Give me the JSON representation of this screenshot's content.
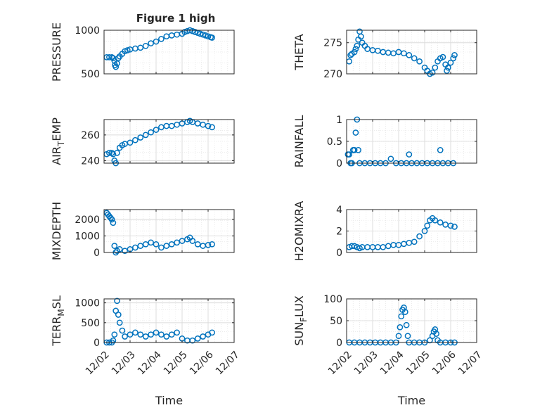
{
  "figure": {
    "title": "Figure 1 high"
  },
  "colors": {
    "marker": "#0072BD",
    "axis": "#262626",
    "grid": "#dcdcdc",
    "background": "#ffffff"
  },
  "x_axis": {
    "label": "Time",
    "ticks": [
      "12/02",
      "12/03",
      "12/04",
      "12/05",
      "12/06",
      "12/07"
    ],
    "tick_values": [
      0,
      1,
      2,
      3,
      4,
      5
    ],
    "range": [
      0,
      5
    ]
  },
  "chart_data": [
    {
      "id": "pressure",
      "type": "scatter",
      "title": "Figure 1 high",
      "ylabel": "PRESSURE",
      "ylabel_sub": null,
      "ylim": [
        500,
        1000
      ],
      "yticks": [
        500,
        1000
      ],
      "grid": true,
      "points": [
        [
          0.1,
          690
        ],
        [
          0.2,
          690
        ],
        [
          0.3,
          690
        ],
        [
          0.35,
          680
        ],
        [
          0.4,
          650
        ],
        [
          0.42,
          600
        ],
        [
          0.45,
          580
        ],
        [
          0.5,
          620
        ],
        [
          0.55,
          680
        ],
        [
          0.6,
          700
        ],
        [
          0.7,
          730
        ],
        [
          0.8,
          760
        ],
        [
          0.9,
          770
        ],
        [
          1.0,
          780
        ],
        [
          1.2,
          790
        ],
        [
          1.4,
          800
        ],
        [
          1.6,
          820
        ],
        [
          1.8,
          850
        ],
        [
          2.0,
          870
        ],
        [
          2.2,
          900
        ],
        [
          2.4,
          930
        ],
        [
          2.6,
          940
        ],
        [
          2.8,
          950
        ],
        [
          3.0,
          960
        ],
        [
          3.1,
          980
        ],
        [
          3.2,
          990
        ],
        [
          3.3,
          1000
        ],
        [
          3.4,
          990
        ],
        [
          3.5,
          980
        ],
        [
          3.6,
          970
        ],
        [
          3.7,
          960
        ],
        [
          3.8,
          950
        ],
        [
          3.9,
          940
        ],
        [
          4.0,
          930
        ],
        [
          4.1,
          920
        ],
        [
          4.15,
          915
        ]
      ]
    },
    {
      "id": "theta",
      "type": "scatter",
      "title": "",
      "ylabel": "THETA",
      "ylabel_sub": null,
      "ylim": [
        270,
        277
      ],
      "yticks": [
        270,
        275
      ],
      "grid": true,
      "points": [
        [
          0.1,
          272.0
        ],
        [
          0.15,
          273.0
        ],
        [
          0.2,
          273.2
        ],
        [
          0.3,
          273.5
        ],
        [
          0.35,
          274.0
        ],
        [
          0.4,
          274.5
        ],
        [
          0.45,
          275.5
        ],
        [
          0.5,
          276.8
        ],
        [
          0.55,
          276.0
        ],
        [
          0.6,
          275.0
        ],
        [
          0.7,
          274.5
        ],
        [
          0.8,
          274.0
        ],
        [
          1.0,
          273.8
        ],
        [
          1.2,
          273.7
        ],
        [
          1.4,
          273.5
        ],
        [
          1.6,
          273.4
        ],
        [
          1.8,
          273.3
        ],
        [
          2.0,
          273.5
        ],
        [
          2.2,
          273.3
        ],
        [
          2.4,
          273.0
        ],
        [
          2.6,
          272.5
        ],
        [
          2.8,
          272.0
        ],
        [
          3.0,
          271.0
        ],
        [
          3.1,
          270.5
        ],
        [
          3.2,
          270.0
        ],
        [
          3.3,
          270.2
        ],
        [
          3.4,
          271.0
        ],
        [
          3.5,
          272.0
        ],
        [
          3.6,
          272.5
        ],
        [
          3.7,
          272.7
        ],
        [
          3.8,
          271.5
        ],
        [
          3.85,
          270.5
        ],
        [
          3.9,
          271.0
        ],
        [
          4.0,
          271.8
        ],
        [
          4.1,
          272.5
        ],
        [
          4.15,
          273.0
        ]
      ]
    },
    {
      "id": "air_temp",
      "type": "scatter",
      "title": "",
      "ylabel": "AIR",
      "ylabel_sub": "T",
      "ylabel_tail": "EMP",
      "ylim": [
        238,
        272
      ],
      "yticks": [
        240,
        260
      ],
      "grid": true,
      "points": [
        [
          0.1,
          245
        ],
        [
          0.2,
          246
        ],
        [
          0.3,
          246
        ],
        [
          0.35,
          245
        ],
        [
          0.4,
          240
        ],
        [
          0.45,
          238
        ],
        [
          0.5,
          246
        ],
        [
          0.6,
          250
        ],
        [
          0.7,
          252
        ],
        [
          0.8,
          253
        ],
        [
          1.0,
          254
        ],
        [
          1.2,
          256
        ],
        [
          1.4,
          258
        ],
        [
          1.6,
          260
        ],
        [
          1.8,
          262
        ],
        [
          2.0,
          264
        ],
        [
          2.2,
          266
        ],
        [
          2.4,
          267
        ],
        [
          2.6,
          267
        ],
        [
          2.8,
          268
        ],
        [
          3.0,
          269
        ],
        [
          3.2,
          270
        ],
        [
          3.3,
          271
        ],
        [
          3.4,
          270
        ],
        [
          3.6,
          269
        ],
        [
          3.8,
          268
        ],
        [
          4.0,
          267
        ],
        [
          4.15,
          266
        ]
      ]
    },
    {
      "id": "rainfall",
      "type": "scatter",
      "title": "",
      "ylabel": "RAINFALL",
      "ylabel_sub": null,
      "ylim": [
        0,
        1
      ],
      "yticks": [
        0,
        0.5,
        1
      ],
      "grid": true,
      "points": [
        [
          0.05,
          0.2
        ],
        [
          0.1,
          0.2
        ],
        [
          0.15,
          0.0
        ],
        [
          0.2,
          0.0
        ],
        [
          0.25,
          0.3
        ],
        [
          0.3,
          0.3
        ],
        [
          0.35,
          0.7
        ],
        [
          0.4,
          1.0
        ],
        [
          0.45,
          0.3
        ],
        [
          0.5,
          0.0
        ],
        [
          0.7,
          0.0
        ],
        [
          0.9,
          0.0
        ],
        [
          1.1,
          0.0
        ],
        [
          1.3,
          0.0
        ],
        [
          1.5,
          0.0
        ],
        [
          1.7,
          0.1
        ],
        [
          1.9,
          0.0
        ],
        [
          2.1,
          0.0
        ],
        [
          2.3,
          0.0
        ],
        [
          2.4,
          0.2
        ],
        [
          2.5,
          0.0
        ],
        [
          2.7,
          0.0
        ],
        [
          2.9,
          0.0
        ],
        [
          3.1,
          0.0
        ],
        [
          3.3,
          0.0
        ],
        [
          3.5,
          0.0
        ],
        [
          3.6,
          0.3
        ],
        [
          3.7,
          0.0
        ],
        [
          3.9,
          0.0
        ],
        [
          4.1,
          0.0
        ]
      ]
    },
    {
      "id": "mixdepth",
      "type": "scatter",
      "title": "",
      "ylabel": "MIXDEPTH",
      "ylabel_sub": null,
      "ylim": [
        0,
        2600
      ],
      "yticks": [
        0,
        1000,
        2000
      ],
      "grid": true,
      "points": [
        [
          0.1,
          2400
        ],
        [
          0.15,
          2300
        ],
        [
          0.2,
          2200
        ],
        [
          0.25,
          2100
        ],
        [
          0.3,
          2000
        ],
        [
          0.35,
          1800
        ],
        [
          0.4,
          400
        ],
        [
          0.45,
          0
        ],
        [
          0.5,
          100
        ],
        [
          0.6,
          200
        ],
        [
          0.8,
          100
        ],
        [
          1.0,
          200
        ],
        [
          1.2,
          300
        ],
        [
          1.4,
          400
        ],
        [
          1.6,
          500
        ],
        [
          1.8,
          600
        ],
        [
          2.0,
          500
        ],
        [
          2.2,
          300
        ],
        [
          2.4,
          400
        ],
        [
          2.6,
          500
        ],
        [
          2.8,
          600
        ],
        [
          3.0,
          700
        ],
        [
          3.2,
          800
        ],
        [
          3.3,
          900
        ],
        [
          3.4,
          700
        ],
        [
          3.6,
          500
        ],
        [
          3.8,
          400
        ],
        [
          4.0,
          450
        ],
        [
          4.15,
          500
        ]
      ]
    },
    {
      "id": "h2omixra",
      "type": "scatter",
      "title": "",
      "ylabel": "H2OMIXRA",
      "ylabel_sub": null,
      "ylim": [
        0,
        4
      ],
      "yticks": [
        0,
        2,
        4
      ],
      "grid": true,
      "points": [
        [
          0.1,
          0.5
        ],
        [
          0.2,
          0.6
        ],
        [
          0.3,
          0.6
        ],
        [
          0.4,
          0.5
        ],
        [
          0.5,
          0.4
        ],
        [
          0.6,
          0.5
        ],
        [
          0.8,
          0.5
        ],
        [
          1.0,
          0.5
        ],
        [
          1.2,
          0.5
        ],
        [
          1.4,
          0.5
        ],
        [
          1.6,
          0.6
        ],
        [
          1.8,
          0.7
        ],
        [
          2.0,
          0.7
        ],
        [
          2.2,
          0.8
        ],
        [
          2.4,
          0.9
        ],
        [
          2.6,
          1.0
        ],
        [
          2.8,
          1.5
        ],
        [
          3.0,
          2.0
        ],
        [
          3.1,
          2.5
        ],
        [
          3.2,
          3.0
        ],
        [
          3.3,
          3.2
        ],
        [
          3.4,
          3.0
        ],
        [
          3.6,
          2.8
        ],
        [
          3.8,
          2.6
        ],
        [
          4.0,
          2.5
        ],
        [
          4.15,
          2.4
        ]
      ]
    },
    {
      "id": "terr_msl",
      "type": "scatter",
      "title": "",
      "ylabel": "TERR",
      "ylabel_sub": "M",
      "ylabel_tail": "SL",
      "ylim": [
        0,
        1100
      ],
      "yticks": [
        0,
        500,
        1000
      ],
      "grid": true,
      "points": [
        [
          0.1,
          0
        ],
        [
          0.2,
          0
        ],
        [
          0.3,
          0
        ],
        [
          0.35,
          50
        ],
        [
          0.4,
          200
        ],
        [
          0.45,
          800
        ],
        [
          0.5,
          1050
        ],
        [
          0.55,
          700
        ],
        [
          0.6,
          500
        ],
        [
          0.7,
          300
        ],
        [
          0.8,
          150
        ],
        [
          1.0,
          200
        ],
        [
          1.2,
          250
        ],
        [
          1.4,
          200
        ],
        [
          1.6,
          150
        ],
        [
          1.8,
          200
        ],
        [
          2.0,
          250
        ],
        [
          2.2,
          200
        ],
        [
          2.4,
          150
        ],
        [
          2.6,
          200
        ],
        [
          2.8,
          250
        ],
        [
          3.0,
          100
        ],
        [
          3.2,
          50
        ],
        [
          3.4,
          50
        ],
        [
          3.6,
          100
        ],
        [
          3.8,
          150
        ],
        [
          4.0,
          200
        ],
        [
          4.15,
          250
        ]
      ]
    },
    {
      "id": "sun_flux",
      "type": "scatter",
      "title": "",
      "ylabel": "SUN",
      "ylabel_sub": "F",
      "ylabel_tail": "LUX",
      "ylim": [
        0,
        100
      ],
      "yticks": [
        0,
        50,
        100
      ],
      "grid": true,
      "points": [
        [
          0.1,
          0
        ],
        [
          0.3,
          0
        ],
        [
          0.5,
          0
        ],
        [
          0.7,
          0
        ],
        [
          0.9,
          0
        ],
        [
          1.1,
          0
        ],
        [
          1.3,
          0
        ],
        [
          1.5,
          0
        ],
        [
          1.7,
          0
        ],
        [
          1.9,
          0
        ],
        [
          2.0,
          15
        ],
        [
          2.05,
          35
        ],
        [
          2.1,
          60
        ],
        [
          2.15,
          75
        ],
        [
          2.2,
          80
        ],
        [
          2.25,
          70
        ],
        [
          2.3,
          40
        ],
        [
          2.35,
          15
        ],
        [
          2.4,
          0
        ],
        [
          2.6,
          0
        ],
        [
          2.8,
          0
        ],
        [
          3.0,
          0
        ],
        [
          3.2,
          5
        ],
        [
          3.3,
          15
        ],
        [
          3.35,
          25
        ],
        [
          3.4,
          30
        ],
        [
          3.45,
          20
        ],
        [
          3.5,
          5
        ],
        [
          3.6,
          0
        ],
        [
          3.8,
          0
        ],
        [
          4.0,
          0
        ],
        [
          4.15,
          0
        ]
      ]
    }
  ]
}
